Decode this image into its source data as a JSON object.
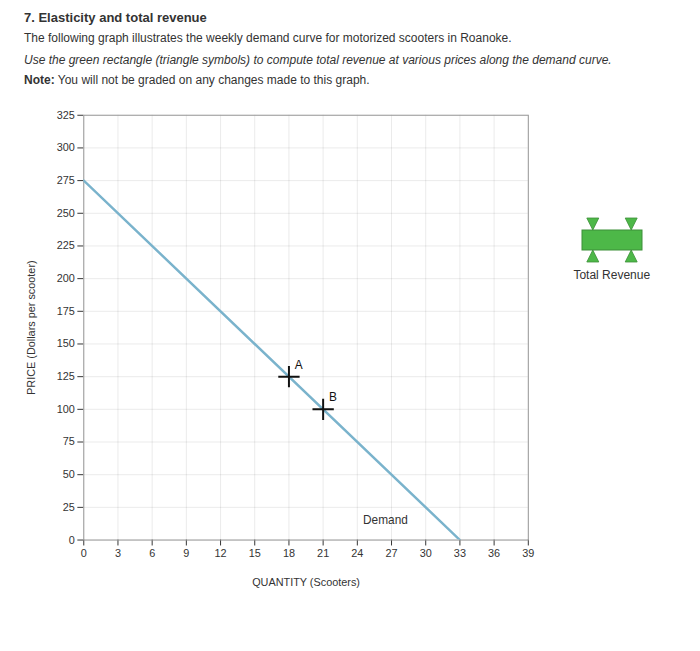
{
  "chart_data": {
    "type": "line",
    "title": "7. Elasticity and total revenue",
    "subtitle": "The following graph illustrates the weekly demand curve for motorized scooters in Roanoke.",
    "instruction": "Use the green rectangle (triangle symbols) to compute total revenue at various prices along the demand curve.",
    "note_label": "Note:",
    "note": "You will not be graded on any changes made to this graph.",
    "xlabel": "QUANTITY (Scooters)",
    "ylabel": "PRICE (Dollars per scooter)",
    "series": [
      {
        "name": "Demand",
        "color": "#7ab3cc",
        "x": [
          0,
          33
        ],
        "values": [
          275,
          0
        ]
      }
    ],
    "points": [
      {
        "label": "A",
        "x": 18,
        "y": 125
      },
      {
        "label": "B",
        "x": 21,
        "y": 100
      }
    ],
    "marker": "plus",
    "annotations": [
      {
        "text": "Demand",
        "x": 24.5,
        "y": 12
      }
    ],
    "legend_entries": [
      {
        "name": "Total Revenue",
        "color": "#4db848",
        "marker": "triangle"
      }
    ],
    "xlim": [
      0,
      39
    ],
    "ylim": [
      0,
      325
    ],
    "xticks": [
      0,
      3,
      6,
      9,
      12,
      15,
      18,
      21,
      24,
      27,
      30,
      33,
      36,
      39
    ],
    "yticks": [
      0,
      25,
      50,
      75,
      100,
      125,
      150,
      175,
      200,
      225,
      250,
      275,
      300,
      325
    ],
    "grid": true
  }
}
